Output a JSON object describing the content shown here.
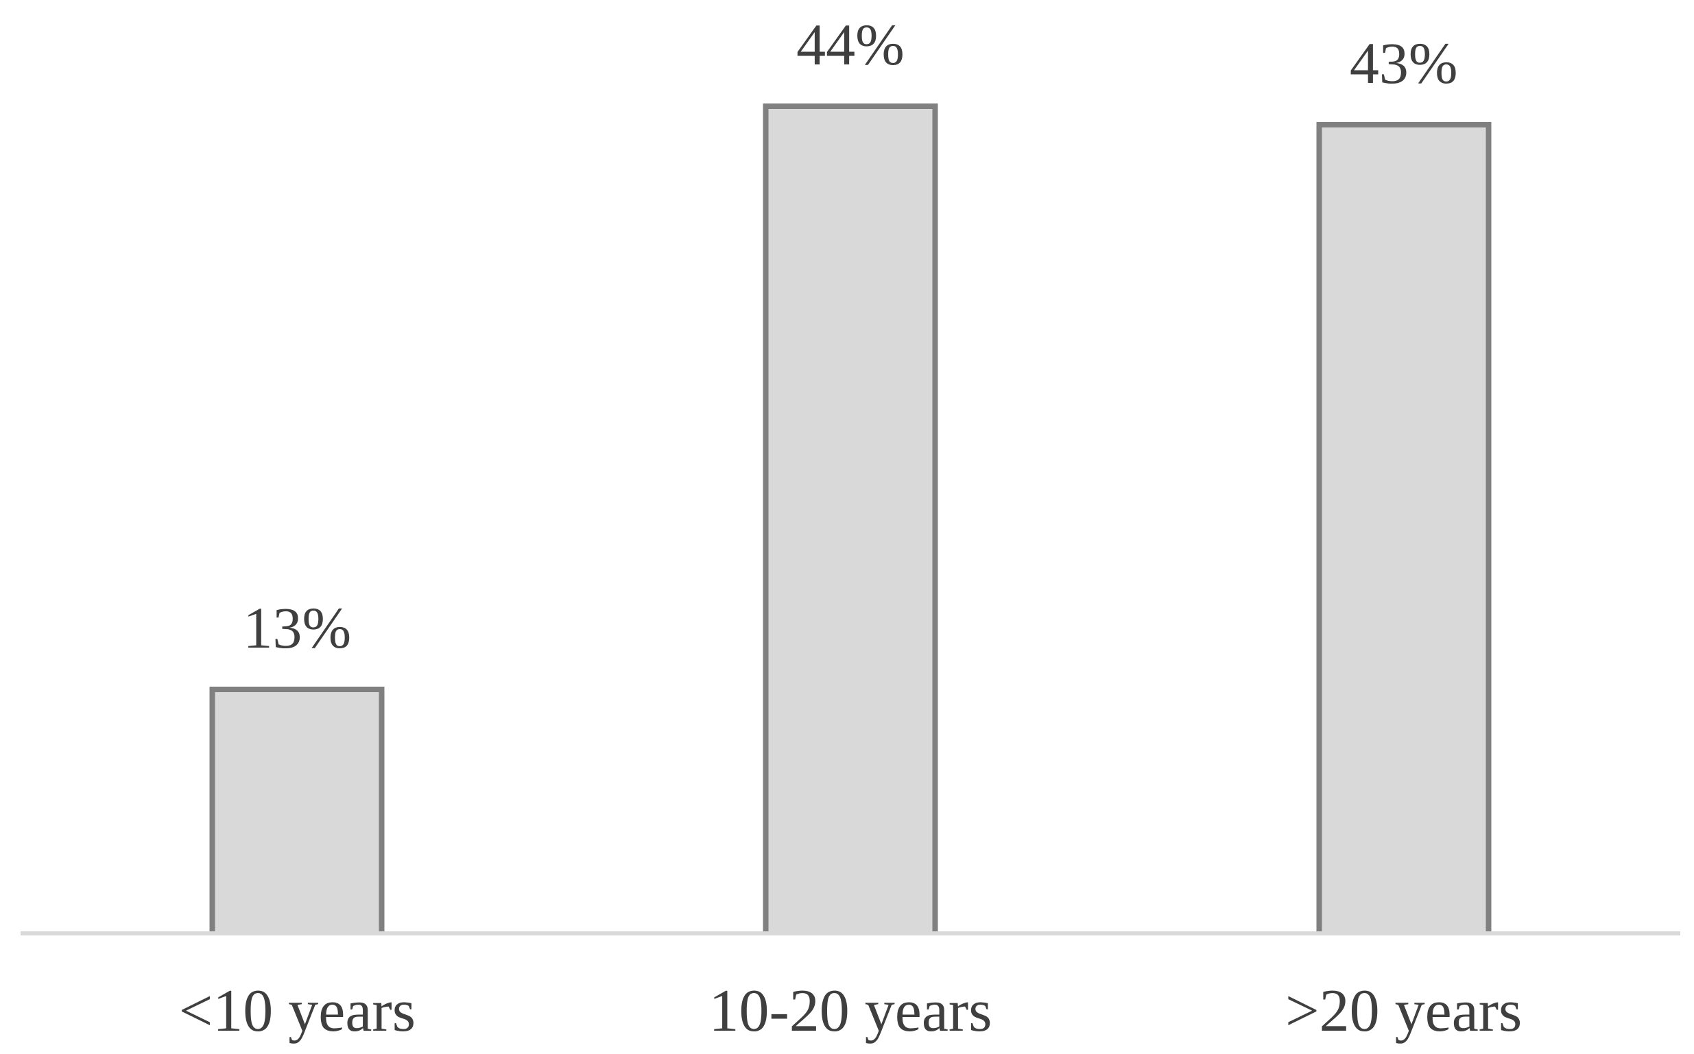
{
  "chart_data": {
    "type": "bar",
    "title": "",
    "xlabel": "",
    "ylabel": "",
    "categories": [
      "<10 years",
      "10-20 years",
      ">20 years"
    ],
    "values": [
      13,
      44,
      43
    ],
    "value_labels": [
      "13%",
      "44%",
      "43%"
    ],
    "unit": "%",
    "ylim": [
      0,
      50
    ],
    "grid": false,
    "legend": false,
    "y_axis_shown": false,
    "colors": {
      "bar_fill": "#d9d9d9",
      "bar_border": "#808080",
      "axis_line": "#d9d9d9",
      "label_text": "#3f3f3f",
      "background": "#ffffff"
    }
  }
}
